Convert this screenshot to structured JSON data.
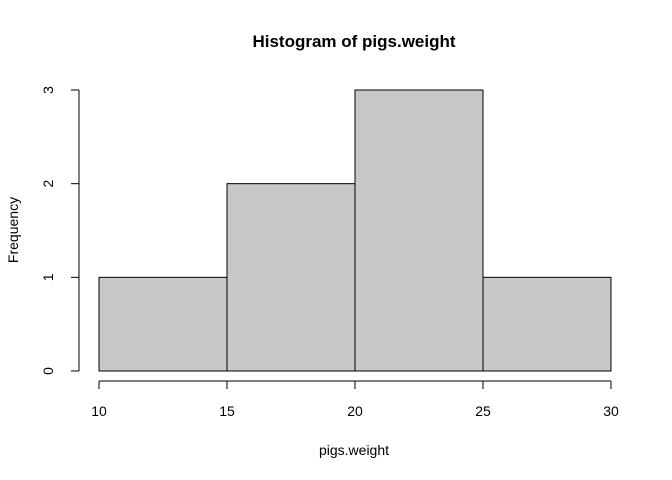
{
  "chart_data": {
    "type": "bar",
    "title": "Histogram of pigs.weight",
    "xlabel": "pigs.weight",
    "ylabel": "Frequency",
    "bins": [
      {
        "start": 10,
        "end": 15,
        "count": 1
      },
      {
        "start": 15,
        "end": 20,
        "count": 2
      },
      {
        "start": 20,
        "end": 25,
        "count": 3
      },
      {
        "start": 25,
        "end": 30,
        "count": 1
      }
    ],
    "xlim": [
      10,
      30
    ],
    "ylim": [
      0,
      3
    ],
    "x_ticks": [
      10,
      15,
      20,
      25,
      30
    ],
    "y_ticks": [
      0,
      1,
      2,
      3
    ],
    "bar_color": "#c8c8c8",
    "grid": false
  }
}
